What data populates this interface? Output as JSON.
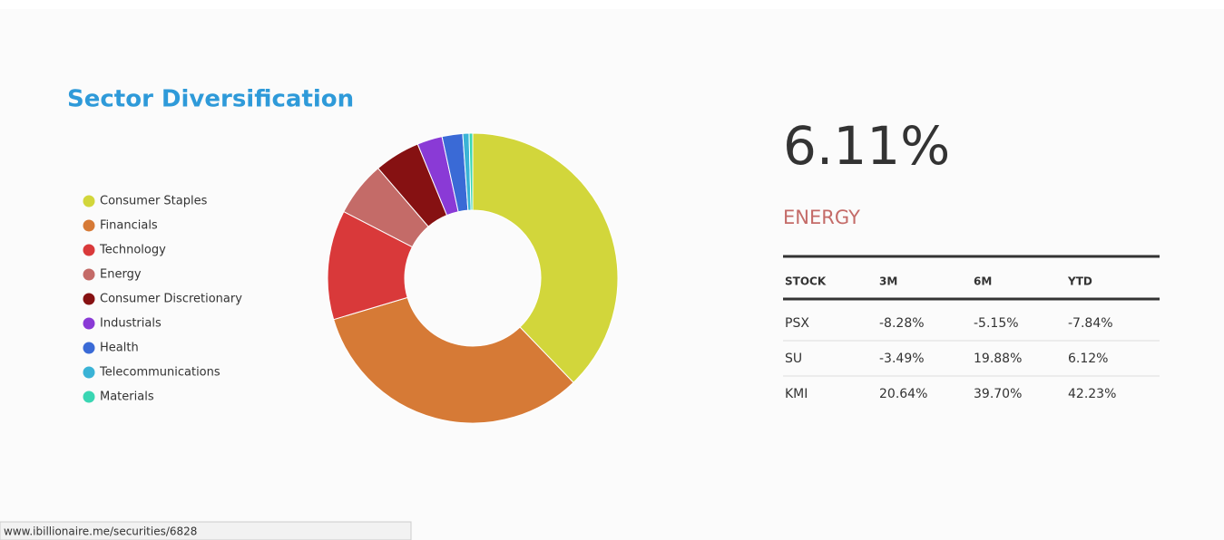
{
  "chart_data": {
    "type": "donut",
    "title": "Sector Diversification",
    "categories": [
      "Consumer Staples",
      "Financials",
      "Technology",
      "Energy",
      "Consumer Discretionary",
      "Industrials",
      "Health",
      "Telecommunications",
      "Materials"
    ],
    "values": [
      37.8,
      32.6,
      12.2,
      6.11,
      5.1,
      2.8,
      2.3,
      0.7,
      0.4
    ],
    "colors": [
      "#d2d63b",
      "#d67a36",
      "#d9393a",
      "#c46b68",
      "#861112",
      "#8a3ad6",
      "#3a6ad6",
      "#3ab3d6",
      "#3ad6b3"
    ]
  },
  "detail": {
    "value": "6.11%",
    "sector": "ENERGY"
  },
  "table": {
    "header": [
      "STOCK",
      "3M",
      "6M",
      "YTD"
    ],
    "rows": [
      [
        "PSX",
        "-8.28%",
        "-5.15%",
        "-7.84%"
      ],
      [
        "SU",
        "-3.49%",
        "19.88%",
        "6.12%"
      ],
      [
        "KMI",
        "20.64%",
        "39.70%",
        "42.23%"
      ]
    ]
  },
  "status_url": "www.ibillionaire.me/securities/6828"
}
